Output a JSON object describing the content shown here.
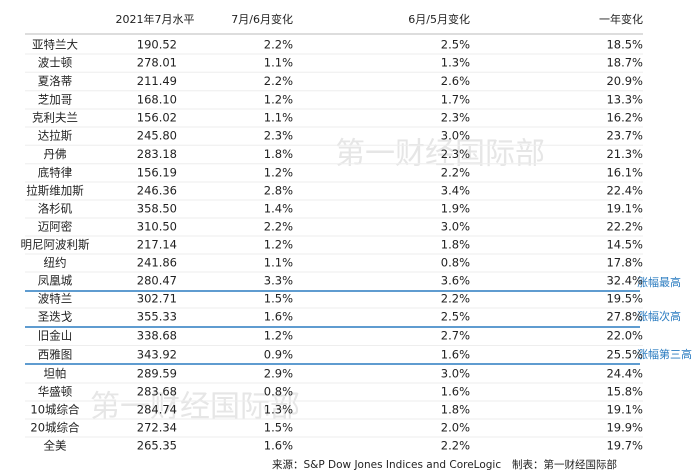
{
  "table": {
    "columns": [
      "",
      "2021年7月水平",
      "7月/6月变化",
      "6月/5月变化",
      "一年变化"
    ],
    "rows": [
      [
        "亚特兰大",
        "190.52",
        "2.2%",
        "2.5%",
        "18.5%"
      ],
      [
        "波士顿",
        "278.01",
        "1.1%",
        "1.3%",
        "18.7%"
      ],
      [
        "夏洛蒂",
        "211.49",
        "2.2%",
        "2.6%",
        "20.9%"
      ],
      [
        "芝加哥",
        "168.10",
        "1.2%",
        "1.7%",
        "13.3%"
      ],
      [
        "克利夫兰",
        "156.02",
        "1.1%",
        "2.3%",
        "16.2%"
      ],
      [
        "达拉斯",
        "245.80",
        "2.3%",
        "3.0%",
        "23.7%"
      ],
      [
        "丹佛",
        "283.18",
        "1.8%",
        "2.3%",
        "21.3%"
      ],
      [
        "底特律",
        "156.19",
        "1.2%",
        "2.2%",
        "16.1%"
      ],
      [
        "拉斯维加斯",
        "246.36",
        "2.8%",
        "3.4%",
        "22.4%"
      ],
      [
        "洛杉矶",
        "358.50",
        "1.4%",
        "1.9%",
        "19.1%"
      ],
      [
        "迈阿密",
        "310.50",
        "2.2%",
        "3.0%",
        "22.2%"
      ],
      [
        "明尼阿波利斯",
        "217.14",
        "1.2%",
        "1.8%",
        "14.5%"
      ],
      [
        "纽约",
        "241.86",
        "1.1%",
        "0.8%",
        "17.8%"
      ],
      [
        "凤凰城",
        "280.47",
        "3.3%",
        "3.6%",
        "32.4%"
      ],
      [
        "波特兰",
        "302.71",
        "1.5%",
        "2.2%",
        "19.5%"
      ],
      [
        "圣迭戈",
        "355.33",
        "1.6%",
        "2.5%",
        "27.8%"
      ],
      [
        "旧金山",
        "338.68",
        "1.2%",
        "2.7%",
        "22.0%"
      ],
      [
        "西雅图",
        "343.92",
        "0.9%",
        "1.6%",
        "25.5%"
      ],
      [
        "坦帕",
        "289.59",
        "2.9%",
        "3.0%",
        "24.4%"
      ],
      [
        "华盛顿",
        "283.68",
        "0.8%",
        "1.6%",
        "15.8%"
      ],
      [
        "10城综合",
        "284.74",
        "1.3%",
        "1.8%",
        "19.1%"
      ],
      [
        "20城综合",
        "272.34",
        "1.5%",
        "2.0%",
        "19.9%"
      ],
      [
        "全美",
        "265.35",
        "1.6%",
        "2.2%",
        "19.7%"
      ]
    ]
  },
  "side_labels": [
    "涨幅最高",
    "涨幅次高",
    "涨幅第三高"
  ],
  "footer": {
    "source": "来源：S&P Dow Jones Indices and CoreLogic",
    "credit": "制表：第一财经国际部"
  },
  "watermarks": [
    "第一财经国际部",
    "第一财经国际部"
  ]
}
